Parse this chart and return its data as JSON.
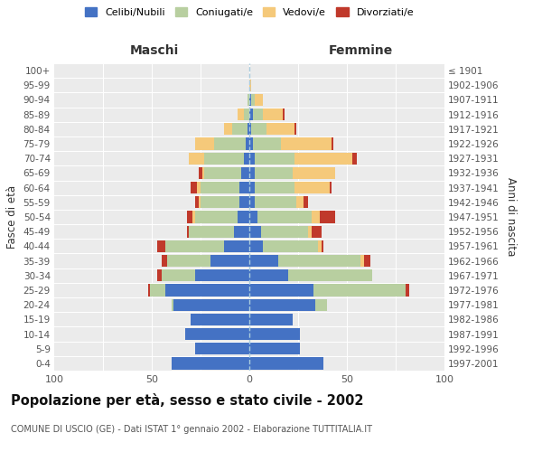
{
  "age_groups": [
    "0-4",
    "5-9",
    "10-14",
    "15-19",
    "20-24",
    "25-29",
    "30-34",
    "35-39",
    "40-44",
    "45-49",
    "50-54",
    "55-59",
    "60-64",
    "65-69",
    "70-74",
    "75-79",
    "80-84",
    "85-89",
    "90-94",
    "95-99",
    "100+"
  ],
  "birth_years": [
    "1997-2001",
    "1992-1996",
    "1987-1991",
    "1982-1986",
    "1977-1981",
    "1972-1976",
    "1967-1971",
    "1962-1966",
    "1957-1961",
    "1952-1956",
    "1947-1951",
    "1942-1946",
    "1937-1941",
    "1932-1936",
    "1927-1931",
    "1922-1926",
    "1917-1921",
    "1912-1916",
    "1907-1911",
    "1902-1906",
    "≤ 1901"
  ],
  "males": {
    "celibi": [
      40,
      28,
      33,
      30,
      39,
      43,
      28,
      20,
      13,
      8,
      6,
      5,
      5,
      4,
      3,
      2,
      1,
      0,
      0,
      0,
      0
    ],
    "coniugati": [
      0,
      0,
      0,
      0,
      1,
      8,
      17,
      22,
      30,
      23,
      22,
      20,
      20,
      19,
      20,
      16,
      8,
      3,
      1,
      0,
      0
    ],
    "vedovi": [
      0,
      0,
      0,
      0,
      0,
      0,
      0,
      0,
      0,
      0,
      1,
      1,
      2,
      1,
      8,
      10,
      4,
      3,
      0,
      0,
      0
    ],
    "divorziati": [
      0,
      0,
      0,
      0,
      0,
      1,
      2,
      3,
      4,
      1,
      3,
      2,
      3,
      2,
      0,
      0,
      0,
      0,
      0,
      0,
      0
    ]
  },
  "females": {
    "nubili": [
      38,
      26,
      26,
      22,
      34,
      33,
      20,
      15,
      7,
      6,
      4,
      3,
      3,
      3,
      3,
      2,
      1,
      2,
      1,
      0,
      0
    ],
    "coniugate": [
      0,
      0,
      0,
      0,
      6,
      47,
      43,
      42,
      28,
      24,
      28,
      21,
      20,
      19,
      20,
      14,
      8,
      5,
      2,
      0,
      0
    ],
    "vedove": [
      0,
      0,
      0,
      0,
      0,
      0,
      0,
      2,
      2,
      2,
      4,
      4,
      18,
      22,
      30,
      26,
      14,
      10,
      4,
      1,
      0
    ],
    "divorziate": [
      0,
      0,
      0,
      0,
      0,
      2,
      0,
      3,
      1,
      5,
      8,
      2,
      1,
      0,
      2,
      1,
      1,
      1,
      0,
      0,
      0
    ]
  },
  "colors": {
    "celibi": "#4472c4",
    "coniugati": "#b8cfa0",
    "vedovi": "#f5c97a",
    "divorziati": "#c0392b"
  },
  "xlim": 100,
  "title": "Popolazione per età, sesso e stato civile - 2002",
  "subtitle": "COMUNE DI USCIO (GE) - Dati ISTAT 1° gennaio 2002 - Elaborazione TUTTITALIA.IT",
  "ylabel": "Fasce di età",
  "right_label": "Anni di nascita",
  "legend_labels": [
    "Celibi/Nubili",
    "Coniugati/e",
    "Vedovi/e",
    "Divorziati/e"
  ]
}
